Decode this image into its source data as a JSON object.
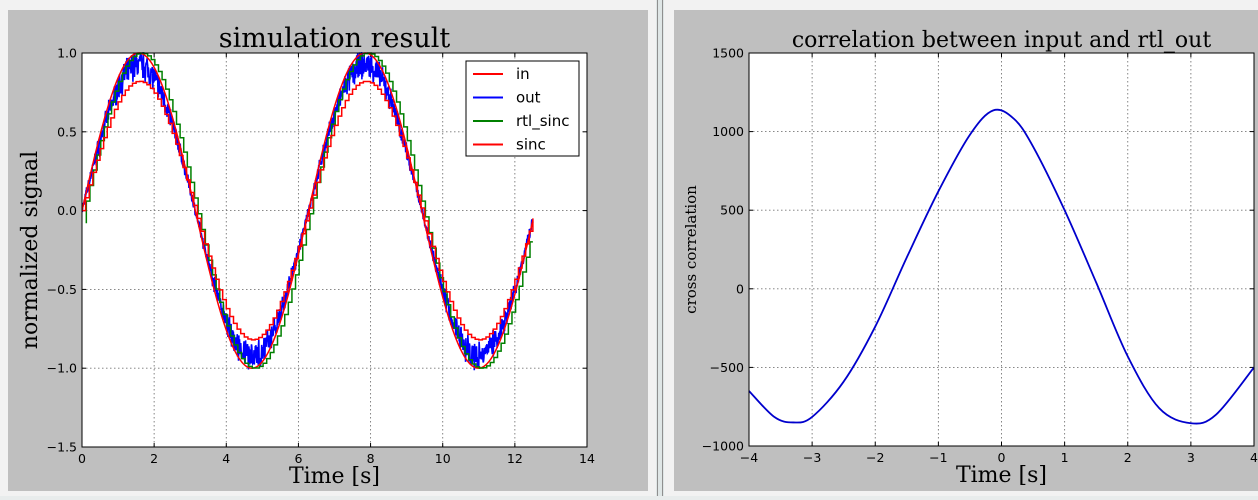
{
  "chart_data": [
    {
      "type": "line",
      "title": "simulation result",
      "xlabel": "Time [s]",
      "ylabel": "normalized signal",
      "xlim": [
        0,
        14
      ],
      "ylim": [
        -1.5,
        1.0
      ],
      "xticks": [
        "0",
        "2",
        "4",
        "6",
        "8",
        "10",
        "12",
        "14"
      ],
      "yticks": [
        "−1.5",
        "−1.0",
        "−0.5",
        "0.0",
        "0.5",
        "1.0"
      ],
      "grid": true,
      "legend_position": "top-right",
      "series": [
        {
          "name": "in",
          "color": "#ff0000",
          "style": "smooth sine",
          "amplitude": 1.0,
          "period": 6.28,
          "x_start": 0,
          "x_end": 12.5
        },
        {
          "name": "out",
          "color": "#0000ff",
          "style": "noisy band",
          "amplitude_min": 0.85,
          "amplitude_max": 1.0,
          "period": 6.28,
          "x_start": 0,
          "x_end": 12.5
        },
        {
          "name": "rtl_sinc",
          "color": "#008000",
          "style": "step",
          "amplitude": 1.0,
          "period": 6.28,
          "x_start": 0,
          "x_end": 12.5,
          "initial_value": -0.08
        },
        {
          "name": "sinc",
          "color": "#ff0000",
          "style": "step",
          "amplitude": 0.82,
          "period": 6.28,
          "x_start": 0,
          "x_end": 12.5
        }
      ]
    },
    {
      "type": "line",
      "title": "correlation between input and rtl_out",
      "xlabel": "Time [s]",
      "ylabel": "cross correlation",
      "xlim": [
        -4,
        4
      ],
      "ylim": [
        -1000,
        1500
      ],
      "xticks": [
        "−4",
        "−3",
        "−2",
        "−1",
        "0",
        "1",
        "2",
        "3",
        "4"
      ],
      "yticks": [
        "−1000",
        "−500",
        "0",
        "500",
        "1000",
        "1500"
      ],
      "grid": true,
      "series": [
        {
          "color": "#0000cc",
          "x": [
            -4.0,
            -3.6,
            -3.3,
            -3.0,
            -2.5,
            -2.0,
            -1.5,
            -1.0,
            -0.5,
            -0.13,
            0.2,
            0.5,
            1.0,
            1.5,
            2.0,
            2.5,
            3.0,
            3.4,
            4.0
          ],
          "y": [
            -650,
            -815,
            -850,
            -815,
            -590,
            -240,
            200,
            620,
            980,
            1135,
            1080,
            905,
            500,
            40,
            -430,
            -760,
            -855,
            -800,
            -500
          ]
        }
      ]
    }
  ]
}
